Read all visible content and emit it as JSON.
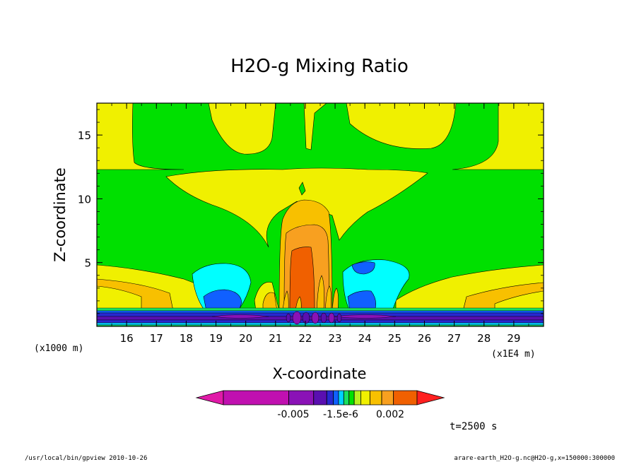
{
  "chart_data": {
    "type": "heatmap",
    "title": "H2O-g Mixing Ratio",
    "xlabel": "X-coordinate",
    "ylabel": "Z-coordinate",
    "x_unit": "(x1E4 m)",
    "y_unit": "(x1000 m)",
    "xlim": [
      15.0,
      30.0
    ],
    "ylim": [
      0.0,
      17.5
    ],
    "x_ticks": [
      "16",
      "17",
      "18",
      "19",
      "20",
      "21",
      "22",
      "23",
      "24",
      "25",
      "26",
      "27",
      "28",
      "29"
    ],
    "y_ticks": [
      "5",
      "10",
      "15"
    ],
    "colorbar": {
      "colors": [
        "#e01aa8",
        "#c010b0",
        "#8a12b6",
        "#5a0fb0",
        "#2828d0",
        "#1060ff",
        "#00d0ff",
        "#18e060",
        "#00e000",
        "#b8f020",
        "#f0f000",
        "#f8c000",
        "#f8a020",
        "#f06000",
        "#ff2020"
      ],
      "labels": [
        "-0.005",
        "-1.5e-6",
        "0.002"
      ]
    },
    "time_label": "t=2500 s"
  },
  "footer": {
    "left": "/usr/local/bin/gpview  2010-10-26",
    "right": "arare-earth_H2O-g.nc@H2O-g,x=150000:300000"
  },
  "colors": {
    "green": "#00e000",
    "yellow": "#f0f000",
    "gold": "#f8c000",
    "orange": "#f8a020",
    "darkorange": "#f06000",
    "cyan": "#00ffff",
    "blue": "#1060ff",
    "navy": "#2020b0",
    "purple": "#8a12b6"
  }
}
